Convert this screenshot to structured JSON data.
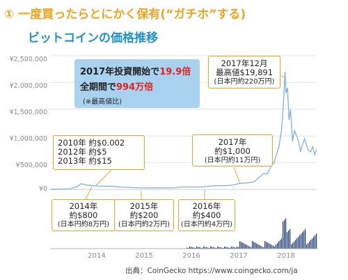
{
  "header": {
    "title": "① 一度買ったらとにかく保有(“ガチホ”する)",
    "subtitle": "ビットコインの価格推移"
  },
  "infobox": {
    "line1_prefix": "2017年投資開始で",
    "line1_value": "19.9倍",
    "line2_prefix": "全期間で",
    "line2_value": "994万倍",
    "note": "(※最高値比)"
  },
  "callouts": {
    "early": [
      "2010年 約$0.002",
      "2012年 約$5",
      "2013年 約$15"
    ],
    "y2017_mid": [
      "2017年",
      "約$1,000",
      "(日本円約11万円)"
    ],
    "y2017_peak": [
      "2017年12月",
      "最高値$19,891",
      "(日本円約220万円)"
    ],
    "y2014": [
      "2014年",
      "約$800",
      "(日本円約8万円)"
    ],
    "y2015": [
      "2015年",
      "約$200",
      "(日本円約2万円)"
    ],
    "y2016": [
      "2016年",
      "約$400",
      "(日本円約4万円)"
    ]
  },
  "source": "出典：CoinGecko https://www.coingecko.com/ja",
  "colors": {
    "accent": "#f0a321",
    "title_blue": "#1f93d2",
    "line": "#7fb0dd",
    "volume": "#15306f",
    "highlight": "#e5231b",
    "infobox": "#a8d2ef"
  },
  "chart_data": {
    "type": "line",
    "ylabel": "",
    "y_ticks": [
      "¥2,500,000",
      "¥2,000,000",
      "¥1,500,000",
      "¥1,000,000",
      "¥500,000",
      "¥0"
    ],
    "ylim": [
      0,
      2500000
    ],
    "x_ticks": [
      "2014",
      "2015",
      "2016",
      "2017",
      "2018"
    ],
    "xlim": [
      2013.3,
      2018.6
    ],
    "series": [
      {
        "values_x": [
          2013.3,
          2013.7,
          2013.85,
          2013.92,
          2014.0,
          2014.15,
          2014.35,
          2014.5,
          2014.7,
          2014.9,
          2015.0,
          2015.2,
          2015.5,
          2015.75,
          2015.9,
          2016.0,
          2016.3,
          2016.5,
          2016.6,
          2016.8,
          2016.95,
          2017.05,
          2017.15,
          2017.25,
          2017.35,
          2017.45,
          2017.55,
          2017.62,
          2017.7,
          2017.75,
          2017.8,
          2017.85,
          2017.9,
          2017.94,
          2017.97,
          2017.99,
          2018.02,
          2018.05,
          2018.08,
          2018.12,
          2018.16,
          2018.2,
          2018.24,
          2018.28,
          2018.32,
          2018.36,
          2018.42,
          2018.48,
          2018.52,
          2018.56,
          2018.6
        ],
        "values_y": [
          3000,
          12000,
          60000,
          110000,
          85000,
          70000,
          60000,
          62000,
          45000,
          38000,
          32000,
          27000,
          28000,
          27000,
          45000,
          45000,
          45000,
          65000,
          70000,
          70000,
          85000,
          110000,
          120000,
          125000,
          140000,
          220000,
          300000,
          290000,
          450000,
          500000,
          650000,
          800000,
          1100000,
          1600000,
          2200000,
          1800000,
          1900000,
          1300000,
          1500000,
          900000,
          1100000,
          1000000,
          900000,
          700000,
          850000,
          950000,
          750000,
          700000,
          800000,
          650000,
          750000
        ]
      }
    ]
  }
}
